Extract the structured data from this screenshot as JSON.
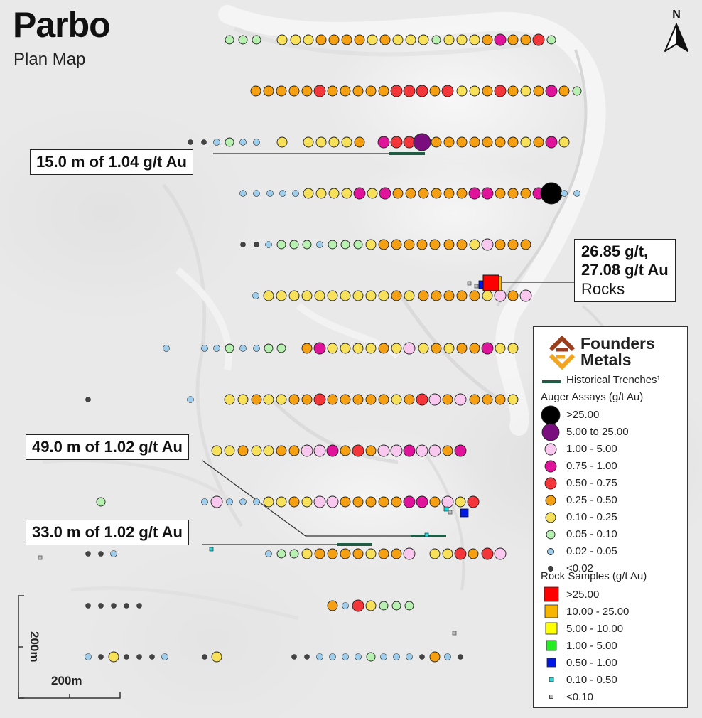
{
  "map": {
    "title": "Parbo",
    "subtitle": "Plan Map",
    "north_label": "N"
  },
  "callouts": [
    {
      "id": "trench-1",
      "text": "15.0 m of 1.04 g/t Au"
    },
    {
      "id": "trench-2",
      "text": "49.0 m of 1.02 g/t Au"
    },
    {
      "id": "trench-3",
      "text": "33.0 m of 1.02 g/t Au"
    },
    {
      "id": "rocks",
      "line1": "26.85 g/t,",
      "line2": "27.08 g/t Au",
      "line3": "Rocks"
    }
  ],
  "legend": {
    "brand_line1": "Founders",
    "brand_line2": "Metals",
    "trench_label": "Historical Trenches¹",
    "auger_title": "Auger Assays (g/t Au)",
    "auger_classes": [
      {
        "label": ">25.00",
        "color": "#000000"
      },
      {
        "label": "5.00 to 25.00",
        "color": "#7b0e7f"
      },
      {
        "label": "1.00 - 5.00",
        "color": "#f8c8ee"
      },
      {
        "label": "0.75 - 1.00",
        "color": "#e0139b"
      },
      {
        "label": "0.50 - 0.75",
        "color": "#f2363a"
      },
      {
        "label": "0.25 - 0.50",
        "color": "#f59f12"
      },
      {
        "label": "0.10 - 0.25",
        "color": "#f8e15a"
      },
      {
        "label": "0.05 - 0.10",
        "color": "#b7f0b0"
      },
      {
        "label": "0.02 - 0.05",
        "color": "#9fcdec"
      },
      {
        "label": "<0.02",
        "color": "#444444"
      }
    ],
    "rock_title": "Rock Samples (g/t Au)",
    "rock_classes": [
      {
        "label": ">25.00",
        "color": "#ff0000"
      },
      {
        "label": "10.00 - 25.00",
        "color": "#f7b500"
      },
      {
        "label": "5.00 - 10.00",
        "color": "#ffff00"
      },
      {
        "label": "1.00 - 5.00",
        "color": "#22ee22"
      },
      {
        "label": "0.50 - 1.00",
        "color": "#0018e6"
      },
      {
        "label": "0.10 - 0.50",
        "color": "#22dddd"
      },
      {
        "label": "<0.10",
        "color": "#bdbdbd"
      }
    ],
    "trench_color": "#1f5c43"
  },
  "scale_bar": {
    "horizontal_label": "200m",
    "vertical_label": "200m"
  },
  "auger_rows": [
    {
      "y": 56,
      "pts": [
        [
          323,
          7
        ],
        [
          342,
          7
        ],
        [
          361,
          7
        ],
        [
          397,
          6
        ],
        [
          416,
          6
        ],
        [
          434,
          6
        ],
        [
          452,
          5
        ],
        [
          470,
          5
        ],
        [
          488,
          5
        ],
        [
          506,
          5
        ],
        [
          524,
          6
        ],
        [
          542,
          5
        ],
        [
          560,
          6
        ],
        [
          578,
          6
        ],
        [
          596,
          6
        ],
        [
          614,
          7
        ],
        [
          632,
          6
        ],
        [
          650,
          6
        ],
        [
          668,
          6
        ],
        [
          686,
          5
        ],
        [
          704,
          3
        ],
        [
          722,
          5
        ],
        [
          740,
          5
        ],
        [
          758,
          4
        ],
        [
          776,
          7
        ]
      ]
    },
    {
      "y": 128,
      "pts": [
        [
          360,
          5
        ],
        [
          378,
          5
        ],
        [
          396,
          5
        ],
        [
          414,
          5
        ],
        [
          432,
          5
        ],
        [
          450,
          4
        ],
        [
          468,
          5
        ],
        [
          486,
          5
        ],
        [
          504,
          5
        ],
        [
          522,
          5
        ],
        [
          540,
          5
        ],
        [
          558,
          4
        ],
        [
          576,
          4
        ],
        [
          594,
          4
        ],
        [
          612,
          5
        ],
        [
          630,
          4
        ],
        [
          650,
          6
        ],
        [
          668,
          6
        ],
        [
          686,
          5
        ],
        [
          704,
          4
        ],
        [
          722,
          5
        ],
        [
          740,
          6
        ],
        [
          758,
          5
        ],
        [
          776,
          3
        ],
        [
          794,
          5
        ],
        [
          812,
          7
        ]
      ]
    },
    {
      "y": 200,
      "pts": [
        [
          268,
          9
        ],
        [
          287,
          9
        ],
        [
          305,
          8
        ],
        [
          323,
          7
        ],
        [
          342,
          8
        ],
        [
          361,
          8
        ],
        [
          397,
          6
        ],
        [
          434,
          6
        ],
        [
          452,
          6
        ],
        [
          470,
          6
        ],
        [
          488,
          6
        ],
        [
          506,
          5
        ],
        [
          540,
          3
        ],
        [
          558,
          4
        ],
        [
          576,
          4
        ],
        [
          594,
          1
        ],
        [
          614,
          5
        ],
        [
          632,
          5
        ],
        [
          650,
          5
        ],
        [
          668,
          5
        ],
        [
          686,
          5
        ],
        [
          704,
          5
        ],
        [
          722,
          5
        ],
        [
          740,
          6
        ],
        [
          758,
          5
        ],
        [
          776,
          3
        ],
        [
          794,
          6
        ]
      ]
    },
    {
      "y": 272,
      "pts": [
        [
          342,
          8
        ],
        [
          361,
          8
        ],
        [
          380,
          8
        ],
        [
          398,
          8
        ],
        [
          416,
          8
        ],
        [
          434,
          6
        ],
        [
          452,
          6
        ],
        [
          470,
          6
        ],
        [
          488,
          6
        ],
        [
          506,
          3
        ],
        [
          524,
          6
        ],
        [
          542,
          3
        ],
        [
          560,
          5
        ],
        [
          578,
          5
        ],
        [
          596,
          5
        ],
        [
          614,
          5
        ],
        [
          632,
          5
        ],
        [
          650,
          5
        ],
        [
          668,
          3
        ],
        [
          686,
          3
        ],
        [
          704,
          5
        ],
        [
          722,
          5
        ],
        [
          740,
          5
        ],
        [
          758,
          3
        ],
        [
          776,
          0
        ],
        [
          794,
          8
        ],
        [
          812,
          8
        ]
      ]
    },
    {
      "y": 344,
      "pts": [
        [
          342,
          9
        ],
        [
          361,
          9
        ],
        [
          378,
          8
        ],
        [
          396,
          7
        ],
        [
          414,
          7
        ],
        [
          432,
          7
        ],
        [
          450,
          8
        ],
        [
          468,
          7
        ],
        [
          486,
          7
        ],
        [
          504,
          7
        ],
        [
          522,
          6
        ],
        [
          540,
          5
        ],
        [
          558,
          5
        ],
        [
          576,
          5
        ],
        [
          594,
          5
        ],
        [
          612,
          5
        ],
        [
          632,
          5
        ],
        [
          650,
          5
        ],
        [
          668,
          6
        ],
        [
          686,
          2
        ],
        [
          704,
          5
        ],
        [
          722,
          5
        ],
        [
          740,
          5
        ]
      ]
    },
    {
      "y": 416,
      "pts": [
        [
          360,
          8
        ],
        [
          378,
          6
        ],
        [
          396,
          6
        ],
        [
          414,
          6
        ],
        [
          432,
          6
        ],
        [
          450,
          6
        ],
        [
          468,
          6
        ],
        [
          486,
          6
        ],
        [
          504,
          6
        ],
        [
          522,
          6
        ],
        [
          540,
          6
        ],
        [
          558,
          5
        ],
        [
          576,
          6
        ],
        [
          596,
          5
        ],
        [
          614,
          5
        ],
        [
          632,
          5
        ],
        [
          650,
          5
        ],
        [
          668,
          5
        ],
        [
          686,
          6
        ],
        [
          704,
          2
        ],
        [
          722,
          5
        ],
        [
          740,
          2
        ]
      ]
    },
    {
      "y": 490,
      "pts": [
        [
          234,
          8
        ],
        [
          288,
          8
        ],
        [
          305,
          8
        ],
        [
          323,
          7
        ],
        [
          342,
          8
        ],
        [
          361,
          8
        ],
        [
          378,
          7
        ],
        [
          396,
          7
        ],
        [
          432,
          5
        ],
        [
          450,
          3
        ],
        [
          468,
          6
        ],
        [
          486,
          6
        ],
        [
          504,
          6
        ],
        [
          522,
          6
        ],
        [
          540,
          5
        ],
        [
          558,
          6
        ],
        [
          576,
          2
        ],
        [
          596,
          6
        ],
        [
          614,
          5
        ],
        [
          632,
          6
        ],
        [
          650,
          5
        ],
        [
          668,
          5
        ],
        [
          686,
          3
        ],
        [
          704,
          6
        ],
        [
          722,
          6
        ]
      ]
    },
    {
      "y": 562,
      "pts": [
        [
          124,
          9
        ],
        [
          268,
          8
        ],
        [
          323,
          6
        ],
        [
          342,
          6
        ],
        [
          361,
          5
        ],
        [
          378,
          6
        ],
        [
          396,
          6
        ],
        [
          414,
          5
        ],
        [
          432,
          5
        ],
        [
          450,
          4
        ],
        [
          468,
          5
        ],
        [
          486,
          5
        ],
        [
          504,
          5
        ],
        [
          522,
          5
        ],
        [
          540,
          5
        ],
        [
          558,
          6
        ],
        [
          576,
          5
        ],
        [
          594,
          4
        ],
        [
          612,
          2
        ],
        [
          630,
          5
        ],
        [
          648,
          2
        ],
        [
          668,
          5
        ],
        [
          686,
          5
        ],
        [
          704,
          5
        ],
        [
          722,
          6
        ]
      ]
    },
    {
      "y": 634,
      "pts": [
        [
          305,
          6
        ],
        [
          323,
          6
        ],
        [
          342,
          5
        ],
        [
          361,
          6
        ],
        [
          378,
          6
        ],
        [
          396,
          5
        ],
        [
          414,
          5
        ],
        [
          432,
          2
        ],
        [
          450,
          2
        ],
        [
          468,
          3
        ],
        [
          486,
          5
        ],
        [
          504,
          4
        ],
        [
          522,
          5
        ],
        [
          540,
          2
        ],
        [
          558,
          2
        ],
        [
          576,
          3
        ],
        [
          594,
          2
        ],
        [
          612,
          2
        ],
        [
          630,
          5
        ],
        [
          648,
          3
        ]
      ]
    },
    {
      "y": 706,
      "pts": [
        [
          142,
          7
        ],
        [
          288,
          8
        ],
        [
          305,
          2
        ],
        [
          323,
          8
        ],
        [
          342,
          8
        ],
        [
          361,
          8
        ],
        [
          378,
          6
        ],
        [
          396,
          6
        ],
        [
          414,
          5
        ],
        [
          432,
          6
        ],
        [
          450,
          2
        ],
        [
          468,
          2
        ],
        [
          486,
          5
        ],
        [
          504,
          5
        ],
        [
          522,
          5
        ],
        [
          540,
          5
        ],
        [
          558,
          5
        ],
        [
          576,
          3
        ],
        [
          594,
          3
        ],
        [
          612,
          5
        ],
        [
          630,
          2
        ],
        [
          648,
          6
        ],
        [
          666,
          4
        ]
      ]
    },
    {
      "y": 779,
      "pts": [
        [
          124,
          9
        ],
        [
          142,
          9
        ],
        [
          160,
          8
        ],
        [
          378,
          8
        ],
        [
          396,
          7
        ],
        [
          414,
          7
        ],
        [
          432,
          6
        ],
        [
          450,
          5
        ],
        [
          468,
          5
        ],
        [
          486,
          5
        ],
        [
          504,
          5
        ],
        [
          522,
          6
        ],
        [
          540,
          5
        ],
        [
          558,
          5
        ],
        [
          576,
          2
        ],
        [
          612,
          6
        ],
        [
          630,
          6
        ],
        [
          648,
          4
        ],
        [
          666,
          5
        ],
        [
          686,
          4
        ],
        [
          704,
          2
        ]
      ]
    },
    {
      "y": 852,
      "pts": [
        [
          124,
          9
        ],
        [
          142,
          9
        ],
        [
          160,
          9
        ],
        [
          178,
          9
        ],
        [
          196,
          9
        ],
        [
          468,
          5
        ],
        [
          486,
          8
        ],
        [
          504,
          4
        ],
        [
          522,
          6
        ],
        [
          540,
          7
        ],
        [
          558,
          7
        ],
        [
          576,
          7
        ]
      ]
    },
    {
      "y": 924,
      "pts": [
        [
          124,
          8
        ],
        [
          142,
          9
        ],
        [
          160,
          6
        ],
        [
          178,
          9
        ],
        [
          196,
          9
        ],
        [
          214,
          9
        ],
        [
          232,
          8
        ],
        [
          288,
          9
        ],
        [
          305,
          6
        ],
        [
          414,
          9
        ],
        [
          432,
          9
        ],
        [
          450,
          8
        ],
        [
          468,
          8
        ],
        [
          486,
          8
        ],
        [
          504,
          8
        ],
        [
          522,
          7
        ],
        [
          540,
          8
        ],
        [
          558,
          8
        ],
        [
          576,
          8
        ],
        [
          594,
          9
        ],
        [
          612,
          5
        ],
        [
          630,
          8
        ],
        [
          648,
          9
        ]
      ]
    }
  ]
}
